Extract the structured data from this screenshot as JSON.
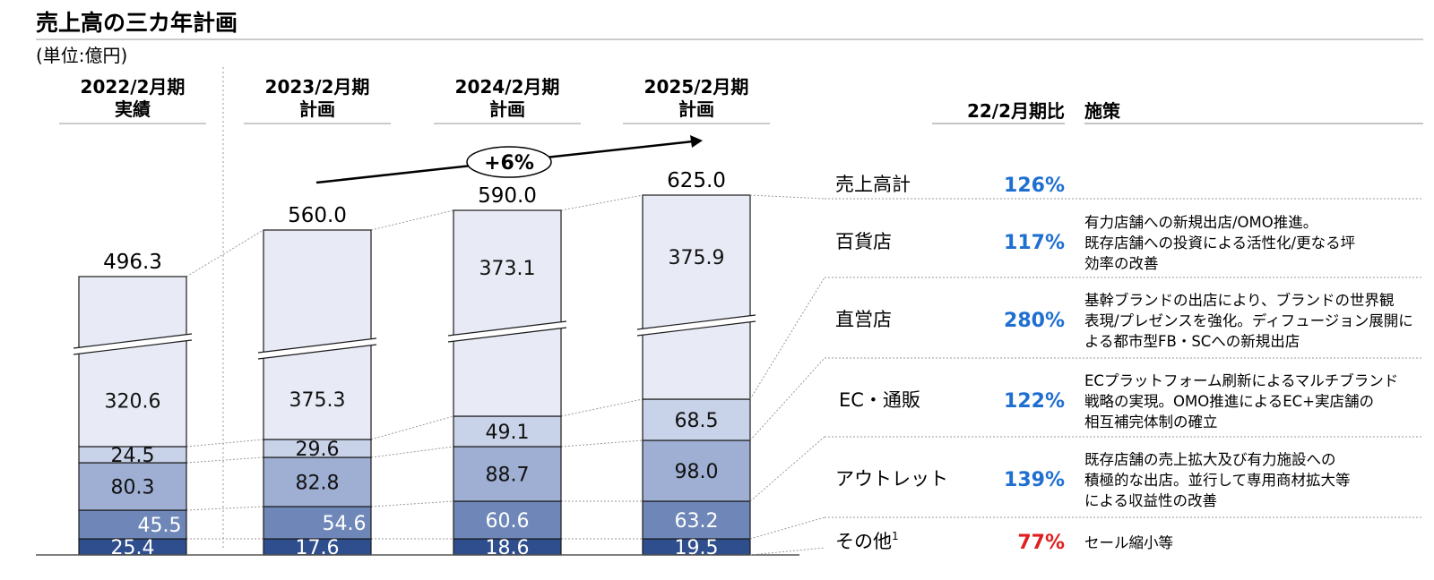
{
  "title": "売上高の三カ年計画",
  "unit": "(単位:億円)",
  "growth_label": "+6%",
  "ratio_header": "22/2月期比",
  "measures_header": "施策",
  "colors": {
    "百貨店": "#e8ebf6",
    "直営店": "#c8d2e8",
    "EC・通販": "#9eafd3",
    "アウトレット": "#6f87b8",
    "その他": "#2f4e8d",
    "ratio_up": "#1f6fd1",
    "ratio_down": "#e02020"
  },
  "chart_data": {
    "type": "bar",
    "stacked": true,
    "categories": [
      {
        "line1": "2022/2月期",
        "line2": "実績"
      },
      {
        "line1": "2023/2月期",
        "line2": "計画"
      },
      {
        "line1": "2024/2月期",
        "line2": "計画"
      },
      {
        "line1": "2025/2月期",
        "line2": "計画"
      }
    ],
    "totals": [
      "496.3",
      "560.0",
      "590.0",
      "625.0"
    ],
    "series": [
      {
        "name": "その他",
        "values": [
          25.4,
          17.6,
          18.6,
          19.5
        ],
        "labels": [
          "25.4",
          "17.6",
          "18.6",
          "19.5"
        ]
      },
      {
        "name": "アウトレット",
        "values": [
          45.5,
          54.6,
          60.6,
          63.2
        ],
        "labels": [
          "45.5",
          "54.6",
          "60.6",
          "63.2"
        ]
      },
      {
        "name": "EC・通販",
        "values": [
          80.3,
          82.8,
          88.7,
          98.0
        ],
        "labels": [
          "80.3",
          "82.8",
          "88.7",
          "98.0"
        ]
      },
      {
        "name": "直営店",
        "values": [
          24.5,
          29.6,
          49.1,
          68.5
        ],
        "labels": [
          "24.5",
          "29.6",
          "49.1",
          "68.5"
        ]
      },
      {
        "name": "百貨店",
        "values": [
          320.6,
          375.3,
          373.1,
          375.9
        ],
        "labels": [
          "320.6",
          "375.3",
          "373.1",
          "375.9"
        ]
      }
    ],
    "axis_break": true,
    "grid": false
  },
  "rows": [
    {
      "label": "売上高計",
      "ratio": "126%",
      "measure": []
    },
    {
      "label": "百貨店",
      "ratio": "117%",
      "measure": [
        "有力店舗への新規出店/OMO推進。",
        "既存店舗への投資による活性化/更なる坪",
        "効率の改善"
      ]
    },
    {
      "label": "直営店",
      "ratio": "280%",
      "measure": [
        "基幹ブランドの出店により、ブランドの世界観",
        "表現/プレゼンスを強化。ディフュージョン展開に",
        "よる都市型FB・SCへの新規出店"
      ]
    },
    {
      "label": "EC・通販",
      "ratio": "122%",
      "measure": [
        "ECプラットフォーム刷新によるマルチブランド",
        "戦略の実現。OMO推進によるEC+実店舗の",
        "相互補完体制の確立"
      ]
    },
    {
      "label": "アウトレット",
      "ratio": "139%",
      "measure": [
        "既存店舗の売上拡大及び有力施設への",
        "積極的な出店。並行して専用商材拡大等",
        "による収益性の改善"
      ]
    },
    {
      "label": "その他",
      "footnote": "1",
      "ratio": "77%",
      "measure": [
        "セール縮小等"
      ]
    }
  ]
}
